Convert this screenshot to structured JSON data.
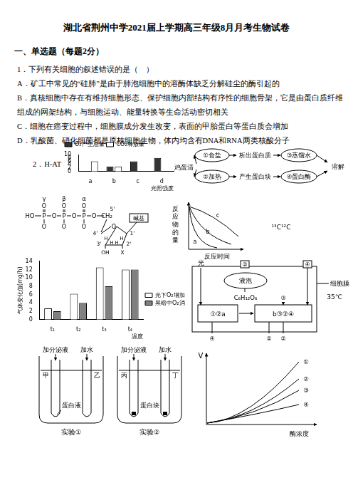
{
  "title": "湖北省荆州中学2021届上学期高三年级8月月考生物试卷",
  "section": "一、单选题（每题2分）",
  "question": {
    "stem": "1．下列有关细胞的叙述错误的是（　）",
    "options": [
      "A．矿工中常见的“硅肺”是由于肺泡细胞中的溶酶体缺乏分解硅尘的酶引起的",
      "B．真核细胞中存在有维持细胞形态、保护细胞内部结构有序性的细胞骨架，它是由蛋白质纤维组成的网架结构，与细胞运动、能量转换等生命活动密切相关",
      "C．细胞在癌变过程中，细胞膜成分发生改变，表面的甲胎蛋白等蛋白质会增加",
      "D．乳酸菌、硝化细菌都是原核细胞生物，体内均含有DNA和RNA两类核酸分子"
    ]
  },
  "figure_label": "2．H-AT",
  "chart_data": [
    {
      "type": "bar",
      "categories": [
        "a",
        "b",
        "c",
        "d"
      ],
      "x_label": "光照强度",
      "series": [
        {
          "name": "O₂产生总量",
          "color": "#333333",
          "values": [
            0,
            3,
            6,
            8
          ]
        },
        {
          "name": "CO₂释放量",
          "color": "#ffffff",
          "values": [
            6,
            3,
            0,
            0
          ]
        }
      ],
      "ylim": [
        0,
        10
      ],
      "yticks": [
        0,
        2,
        4,
        6,
        8,
        10
      ],
      "legend": "upper left",
      "grid": false
    },
    {
      "type": "bar",
      "categories": [
        "t₁",
        "t₂",
        "t₃",
        "t₄"
      ],
      "x_label": "温度",
      "y_label": "气体变化值(mg/h)",
      "series": [
        {
          "name": "光下O₂增加值",
          "color": "#ffffff",
          "values": [
            2.7,
            6.2,
            12.5,
            12.0
          ]
        },
        {
          "name": "黑暗中O₂消耗值",
          "color": "#808080",
          "values": [
            2.0,
            4.0,
            8.0,
            12.0
          ]
        }
      ],
      "ylim": [
        0,
        14
      ],
      "yticks": [
        0,
        2,
        4,
        6,
        8,
        10,
        12,
        14
      ],
      "legend": "right",
      "grid": false
    }
  ],
  "flow_diagram": {
    "start": "鸡蛋清",
    "top": [
      "①食盐",
      "析出蛋白质",
      "③蒸馏水"
    ],
    "bottom": [
      "②加热",
      "产生蛋白块",
      "④蛋白酶"
    ],
    "end": "溶解"
  },
  "atp_structure": {
    "phosphate_labels": [
      "γ",
      "β",
      "α"
    ],
    "backbone": [
      "HO",
      "P",
      "O",
      "P",
      "O",
      "P",
      "O",
      "CH₂"
    ],
    "top_atoms": [
      "O",
      "O",
      "O"
    ],
    "bottom_atoms": [
      "O",
      "O",
      "O"
    ],
    "ring_oxygen": "O",
    "carbons": [
      "5'",
      "4'",
      "1'",
      "3'",
      "2'"
    ],
    "hydrogens": [
      "H",
      "H",
      "H",
      "H"
    ],
    "substituents": [
      "OH",
      "X"
    ],
    "base": "碱基"
  },
  "reaction_graph": {
    "y_label": "反应物的量",
    "x_label": "反应时间",
    "curves": [
      "a",
      "b",
      "c"
    ]
  },
  "isotope_text": "¹³C¹²C",
  "cell_diagram": {
    "light": "光",
    "top_labels": [
      "②",
      "④"
    ],
    "vacuole": "液泡",
    "glucose": "C₆H₁₂O₆",
    "side_label": "③",
    "left_box": "①②a",
    "right_box": "b③②④",
    "bottom_labels": [
      "④",
      "①",
      "②"
    ],
    "membrane": "细胞膜"
  },
  "temperature": "35℃",
  "experiment": {
    "additions": [
      "加分泌液",
      "加水",
      "加分泌液",
      "加水"
    ],
    "tubes": [
      "甲",
      "乙",
      "丙",
      "丁"
    ],
    "contents": [
      "蛋白液",
      "蛋白块"
    ],
    "names": [
      "实验①",
      "实验②"
    ]
  },
  "enzyme_graph": {
    "y_label": "V",
    "x_label": "酶浓度",
    "lines": [
      "①",
      "②",
      "③",
      "④"
    ]
  }
}
